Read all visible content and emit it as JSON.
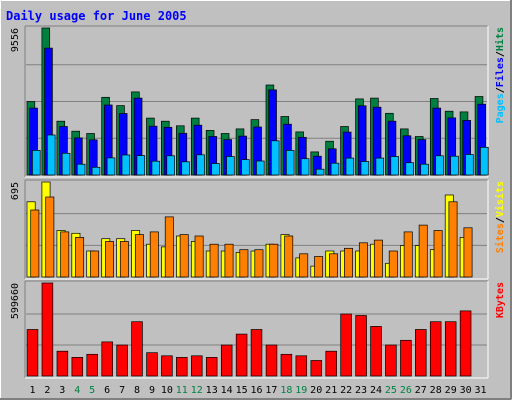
{
  "colors": {
    "background": "#c0c0c0",
    "panel": "#c0c0c0",
    "hits": "#008040",
    "files": "#0000ff",
    "pages": "#00c0ff",
    "visits": "#ffff00",
    "sites": "#ff8000",
    "kbytes": "#ff0000",
    "title": "#0000ff",
    "weekend_label": "#008040",
    "weekday_label": "#000000"
  },
  "chart_data": {
    "type": "bar",
    "title": "Daily usage for June 2005",
    "days": [
      "1",
      "2",
      "3",
      "4",
      "5",
      "6",
      "7",
      "8",
      "9",
      "10",
      "11",
      "12",
      "13",
      "14",
      "15",
      "16",
      "17",
      "18",
      "19",
      "20",
      "21",
      "22",
      "23",
      "24",
      "25",
      "26",
      "27",
      "28",
      "29",
      "30",
      "31"
    ],
    "weekend_days": [
      "4",
      "5",
      "11",
      "12",
      "18",
      "19",
      "25",
      "26"
    ],
    "panels": [
      {
        "id": "hits",
        "ymax_label": "9556",
        "ymax": 9556,
        "legend": [
          {
            "text": "Hits",
            "color": "#008040"
          },
          {
            "text": "/",
            "color": "#000000"
          },
          {
            "text": "Files",
            "color": "#0000ff"
          },
          {
            "text": "/",
            "color": "#000000"
          },
          {
            "text": "Pages",
            "color": "#00c0ff"
          }
        ],
        "series": [
          {
            "name": "Hits",
            "values": [
              4770,
              9556,
              3500,
              2850,
              2700,
              5050,
              4510,
              5400,
              3700,
              3500,
              3200,
              3700,
              2900,
              2700,
              3000,
              3600,
              5850,
              3800,
              2800,
              1500,
              2200,
              3150,
              4950,
              5000,
              4010,
              3000,
              2500,
              4970,
              4150,
              4100,
              5100
            ]
          },
          {
            "name": "Files",
            "values": [
              4350,
              8250,
              3150,
              2410,
              2280,
              4550,
              4000,
              5000,
              3170,
              3100,
              2710,
              3240,
              2500,
              2300,
              2530,
              3120,
              5530,
              3300,
              2450,
              1220,
              1700,
              2790,
              4500,
              4410,
              3500,
              2550,
              2300,
              4350,
              3710,
              3550,
              4600
            ]
          },
          {
            "name": "Pages",
            "values": [
              1600,
              2600,
              1410,
              700,
              500,
              1110,
              1300,
              1260,
              900,
              1250,
              860,
              1310,
              750,
              1200,
              1000,
              910,
              2220,
              1600,
              1060,
              380,
              770,
              1100,
              880,
              1100,
              1200,
              800,
              700,
              1250,
              1220,
              1330,
              1800
            ]
          }
        ]
      },
      {
        "id": "sites",
        "ymax_label": "695",
        "ymax": 695,
        "legend": [
          {
            "text": "Visits",
            "color": "#ffff00"
          },
          {
            "text": "/",
            "color": "#000000"
          },
          {
            "text": "Sites",
            "color": "#ff8000"
          }
        ],
        "series": [
          {
            "name": "Visits",
            "values": [
              550,
              695,
              340,
              320,
              190,
              280,
              280,
              340,
              240,
              220,
              300,
              260,
              190,
              190,
              180,
              190,
              240,
              310,
              140,
              80,
              190,
              190,
              190,
              240,
              100,
              230,
              230,
              200,
              600,
              290,
              0
            ]
          },
          {
            "name": "Sites",
            "values": [
              490,
              585,
              330,
              290,
              190,
              260,
              260,
              310,
              330,
              440,
              310,
              300,
              240,
              240,
              200,
              200,
              240,
              300,
              170,
              150,
              170,
              210,
              250,
              270,
              190,
              330,
              380,
              340,
              550,
              360,
              0
            ]
          }
        ]
      },
      {
        "id": "kbytes",
        "ymax_label": "599660",
        "ymax": 599660,
        "legend": [
          {
            "text": "KBytes",
            "color": "#ff0000"
          }
        ],
        "series": [
          {
            "name": "KBytes",
            "values": [
              300000,
              599660,
              160000,
              120000,
              140000,
              220000,
              200000,
              350000,
              150000,
              130000,
              120000,
              130000,
              120000,
              200000,
              270000,
              300000,
              200000,
              140000,
              130000,
              100000,
              160000,
              400000,
              390000,
              320000,
              200000,
              230000,
              300000,
              350000,
              350000,
              420000,
              0
            ]
          }
        ]
      }
    ]
  }
}
